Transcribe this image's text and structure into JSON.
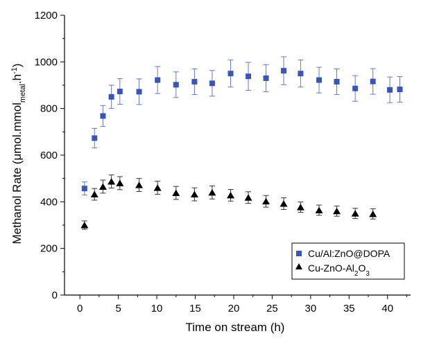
{
  "chart_data": {
    "type": "scatter",
    "xlabel": "Time on stream (h)",
    "ylabel": {
      "prefix": "Methanol Rate (",
      "mu": "μ",
      "mid": "mol.mmol",
      "sub": "metal",
      "tail": ".h",
      "sup": "-1",
      "close": ")"
    },
    "xlim": [
      -2,
      43
    ],
    "ylim": [
      0,
      1200
    ],
    "xticks": [
      0,
      5,
      10,
      15,
      20,
      25,
      30,
      35,
      40
    ],
    "yticks": [
      0,
      200,
      400,
      600,
      800,
      1000,
      1200
    ],
    "grid": false,
    "legend_position": "bottom-right",
    "series": [
      {
        "name": "Cu/Al:ZnO@DOPA",
        "marker": "square",
        "color": "#3b55b4",
        "errorbar_color": "#6677c4",
        "points": [
          {
            "x": 0.6,
            "y": 457,
            "err": 28
          },
          {
            "x": 1.9,
            "y": 673,
            "err": 42
          },
          {
            "x": 3.0,
            "y": 768,
            "err": 45
          },
          {
            "x": 4.1,
            "y": 850,
            "err": 50
          },
          {
            "x": 5.2,
            "y": 873,
            "err": 55
          },
          {
            "x": 7.7,
            "y": 872,
            "err": 55
          },
          {
            "x": 10.1,
            "y": 922,
            "err": 58
          },
          {
            "x": 12.5,
            "y": 902,
            "err": 55
          },
          {
            "x": 14.9,
            "y": 915,
            "err": 55
          },
          {
            "x": 17.2,
            "y": 908,
            "err": 55
          },
          {
            "x": 19.6,
            "y": 950,
            "err": 58
          },
          {
            "x": 21.9,
            "y": 938,
            "err": 60
          },
          {
            "x": 24.2,
            "y": 930,
            "err": 58
          },
          {
            "x": 26.5,
            "y": 962,
            "err": 60
          },
          {
            "x": 28.7,
            "y": 950,
            "err": 58
          },
          {
            "x": 31.1,
            "y": 922,
            "err": 55
          },
          {
            "x": 33.4,
            "y": 915,
            "err": 55
          },
          {
            "x": 35.8,
            "y": 886,
            "err": 55
          },
          {
            "x": 38.1,
            "y": 916,
            "err": 55
          },
          {
            "x": 40.3,
            "y": 880,
            "err": 55
          },
          {
            "x": 41.6,
            "y": 882,
            "err": 55
          }
        ]
      },
      {
        "name": {
          "a": "Cu-ZnO-Al",
          "b": "2",
          "c": "O",
          "d": "3"
        },
        "marker": "triangle",
        "color": "#000000",
        "errorbar_color": "#333333",
        "points": [
          {
            "x": 0.6,
            "y": 300,
            "err": 18
          },
          {
            "x": 1.9,
            "y": 432,
            "err": 25
          },
          {
            "x": 3.0,
            "y": 465,
            "err": 28
          },
          {
            "x": 4.1,
            "y": 487,
            "err": 28
          },
          {
            "x": 5.2,
            "y": 480,
            "err": 28
          },
          {
            "x": 7.7,
            "y": 472,
            "err": 28
          },
          {
            "x": 10.1,
            "y": 460,
            "err": 28
          },
          {
            "x": 12.5,
            "y": 438,
            "err": 28
          },
          {
            "x": 14.9,
            "y": 432,
            "err": 28
          },
          {
            "x": 17.2,
            "y": 440,
            "err": 28
          },
          {
            "x": 19.6,
            "y": 428,
            "err": 25
          },
          {
            "x": 21.9,
            "y": 418,
            "err": 25
          },
          {
            "x": 24.2,
            "y": 402,
            "err": 25
          },
          {
            "x": 26.5,
            "y": 392,
            "err": 25
          },
          {
            "x": 28.7,
            "y": 377,
            "err": 22
          },
          {
            "x": 31.1,
            "y": 364,
            "err": 22
          },
          {
            "x": 33.4,
            "y": 360,
            "err": 22
          },
          {
            "x": 35.8,
            "y": 350,
            "err": 22
          },
          {
            "x": 38.1,
            "y": 348,
            "err": 22
          }
        ]
      }
    ]
  }
}
